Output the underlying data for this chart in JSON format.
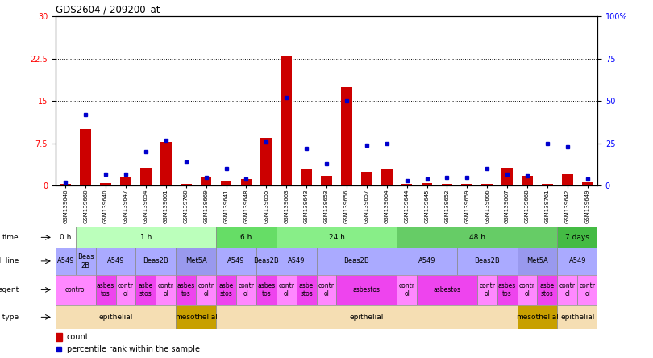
{
  "title": "GDS2604 / 209200_at",
  "samples": [
    "GSM139646",
    "GSM139660",
    "GSM139640",
    "GSM139647",
    "GSM139654",
    "GSM139661",
    "GSM139760",
    "GSM139669",
    "GSM139641",
    "GSM139648",
    "GSM139655",
    "GSM139663",
    "GSM139643",
    "GSM139653",
    "GSM139656",
    "GSM139657",
    "GSM139664",
    "GSM139644",
    "GSM139645",
    "GSM139652",
    "GSM139659",
    "GSM139666",
    "GSM139667",
    "GSM139668",
    "GSM139761",
    "GSM139642",
    "GSM139649"
  ],
  "count_values": [
    0.3,
    10.0,
    0.5,
    1.5,
    3.2,
    7.8,
    0.3,
    1.5,
    0.8,
    1.2,
    8.5,
    23.0,
    3.0,
    1.8,
    17.5,
    2.5,
    3.0,
    0.4,
    0.5,
    0.3,
    0.3,
    0.4,
    3.2,
    1.8,
    0.4,
    2.0,
    0.6
  ],
  "percentile_values": [
    2.0,
    42.0,
    7.0,
    7.0,
    20.0,
    27.0,
    14.0,
    5.0,
    10.0,
    4.0,
    26.0,
    52.0,
    22.0,
    13.0,
    50.0,
    24.0,
    25.0,
    3.0,
    4.0,
    5.0,
    5.0,
    10.0,
    7.0,
    6.0,
    25.0,
    23.0,
    4.0
  ],
  "ylim_left": [
    0,
    30
  ],
  "ylim_right": [
    0,
    100
  ],
  "yticks_left": [
    0,
    7.5,
    15.0,
    22.5,
    30
  ],
  "yticks_right": [
    0,
    25,
    50,
    75,
    100
  ],
  "ytick_labels_left": [
    "0",
    "7.5",
    "15",
    "22.5",
    "30"
  ],
  "ytick_labels_right": [
    "0",
    "25",
    "50",
    "75",
    "100%"
  ],
  "bar_color": "#cc0000",
  "square_color": "#0000cc",
  "time_groups": [
    {
      "label": "0 h",
      "start": 0,
      "end": 1,
      "color": "#ffffff"
    },
    {
      "label": "1 h",
      "start": 1,
      "end": 8,
      "color": "#bbffbb"
    },
    {
      "label": "6 h",
      "start": 8,
      "end": 11,
      "color": "#66dd66"
    },
    {
      "label": "24 h",
      "start": 11,
      "end": 17,
      "color": "#88ee88"
    },
    {
      "label": "48 h",
      "start": 17,
      "end": 25,
      "color": "#66cc66"
    },
    {
      "label": "7 days",
      "start": 25,
      "end": 27,
      "color": "#44bb44"
    }
  ],
  "cellline_groups": [
    {
      "label": "A549",
      "start": 0,
      "end": 1,
      "color": "#aaaaff"
    },
    {
      "label": "Beas\n2B",
      "start": 1,
      "end": 2,
      "color": "#aaaaff"
    },
    {
      "label": "A549",
      "start": 2,
      "end": 4,
      "color": "#aaaaff"
    },
    {
      "label": "Beas2B",
      "start": 4,
      "end": 6,
      "color": "#aaaaff"
    },
    {
      "label": "Met5A",
      "start": 6,
      "end": 8,
      "color": "#9999ee"
    },
    {
      "label": "A549",
      "start": 8,
      "end": 10,
      "color": "#aaaaff"
    },
    {
      "label": "Beas2B",
      "start": 10,
      "end": 11,
      "color": "#aaaaff"
    },
    {
      "label": "A549",
      "start": 11,
      "end": 13,
      "color": "#aaaaff"
    },
    {
      "label": "Beas2B",
      "start": 13,
      "end": 17,
      "color": "#aaaaff"
    },
    {
      "label": "A549",
      "start": 17,
      "end": 20,
      "color": "#aaaaff"
    },
    {
      "label": "Beas2B",
      "start": 20,
      "end": 23,
      "color": "#aaaaff"
    },
    {
      "label": "Met5A",
      "start": 23,
      "end": 25,
      "color": "#9999ee"
    },
    {
      "label": "A549",
      "start": 25,
      "end": 27,
      "color": "#aaaaff"
    }
  ],
  "agent_groups": [
    {
      "label": "control",
      "start": 0,
      "end": 2,
      "color": "#ff88ff"
    },
    {
      "label": "asbes\ntos",
      "start": 2,
      "end": 3,
      "color": "#ee44ee"
    },
    {
      "label": "contr\nol",
      "start": 3,
      "end": 4,
      "color": "#ff88ff"
    },
    {
      "label": "asbe\nstos",
      "start": 4,
      "end": 5,
      "color": "#ee44ee"
    },
    {
      "label": "contr\nol",
      "start": 5,
      "end": 6,
      "color": "#ff88ff"
    },
    {
      "label": "asbes\ntos",
      "start": 6,
      "end": 7,
      "color": "#ee44ee"
    },
    {
      "label": "contr\nol",
      "start": 7,
      "end": 8,
      "color": "#ff88ff"
    },
    {
      "label": "asbe\nstos",
      "start": 8,
      "end": 9,
      "color": "#ee44ee"
    },
    {
      "label": "contr\nol",
      "start": 9,
      "end": 10,
      "color": "#ff88ff"
    },
    {
      "label": "asbes\ntos",
      "start": 10,
      "end": 11,
      "color": "#ee44ee"
    },
    {
      "label": "contr\nol",
      "start": 11,
      "end": 12,
      "color": "#ff88ff"
    },
    {
      "label": "asbe\nstos",
      "start": 12,
      "end": 13,
      "color": "#ee44ee"
    },
    {
      "label": "contr\nol",
      "start": 13,
      "end": 14,
      "color": "#ff88ff"
    },
    {
      "label": "asbestos",
      "start": 14,
      "end": 17,
      "color": "#ee44ee"
    },
    {
      "label": "contr\nol",
      "start": 17,
      "end": 18,
      "color": "#ff88ff"
    },
    {
      "label": "asbestos",
      "start": 18,
      "end": 21,
      "color": "#ee44ee"
    },
    {
      "label": "contr\nol",
      "start": 21,
      "end": 22,
      "color": "#ff88ff"
    },
    {
      "label": "asbes\ntos",
      "start": 22,
      "end": 23,
      "color": "#ee44ee"
    },
    {
      "label": "contr\nol",
      "start": 23,
      "end": 24,
      "color": "#ff88ff"
    },
    {
      "label": "asbe\nstos",
      "start": 24,
      "end": 25,
      "color": "#ee44ee"
    },
    {
      "label": "contr\nol",
      "start": 25,
      "end": 26,
      "color": "#ff88ff"
    },
    {
      "label": "contr\nol",
      "start": 26,
      "end": 27,
      "color": "#ff88ff"
    }
  ],
  "celltype_groups": [
    {
      "label": "epithelial",
      "start": 0,
      "end": 6,
      "color": "#f5deb3"
    },
    {
      "label": "mesothelial",
      "start": 6,
      "end": 8,
      "color": "#c8a000"
    },
    {
      "label": "epithelial",
      "start": 8,
      "end": 23,
      "color": "#f5deb3"
    },
    {
      "label": "mesothelial",
      "start": 23,
      "end": 25,
      "color": "#c8a000"
    },
    {
      "label": "epithelial",
      "start": 25,
      "end": 27,
      "color": "#f5deb3"
    }
  ]
}
